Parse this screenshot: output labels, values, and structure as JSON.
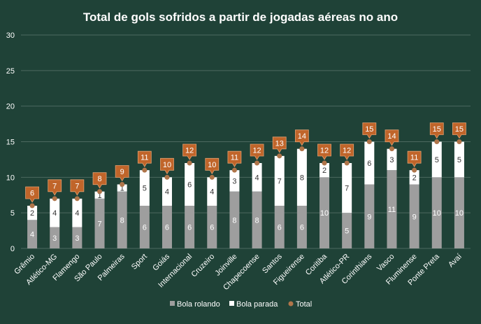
{
  "chart_data": {
    "type": "bar",
    "title": "Total de gols sofridos a partir de jogadas aéreas no ano",
    "categories": [
      "Grêmio",
      "Atlético-MG",
      "Flamengo",
      "São Paulo",
      "Palmeiras",
      "Sport",
      "Goiás",
      "Internacional",
      "Cruzeiro",
      "Joinville",
      "Chapecoense",
      "Santos",
      "Figueirense",
      "Coritiba",
      "Atlético-PR",
      "Corinthians",
      "Vasco",
      "Fluminense",
      "Ponte Preta",
      "Avaí"
    ],
    "series": [
      {
        "name": "Bola rolando",
        "values": [
          4,
          3,
          3,
          7,
          8,
          6,
          6,
          6,
          6,
          8,
          8,
          6,
          6,
          10,
          5,
          9,
          11,
          9,
          10,
          10
        ]
      },
      {
        "name": "Bola parada",
        "values": [
          2,
          4,
          4,
          1,
          1,
          5,
          4,
          6,
          4,
          3,
          4,
          7,
          8,
          2,
          7,
          6,
          3,
          2,
          5,
          5
        ]
      },
      {
        "name": "Total",
        "values": [
          6,
          7,
          7,
          8,
          9,
          11,
          10,
          12,
          10,
          11,
          12,
          13,
          14,
          12,
          12,
          15,
          14,
          11,
          15,
          15
        ]
      }
    ],
    "ylim": [
      0,
      30
    ],
    "yticks": [
      0,
      5,
      10,
      15,
      20,
      25,
      30
    ],
    "grid": true,
    "legend": "bottom",
    "colors": {
      "background": "#1f4237",
      "bola_rolando": "#9e9e9e",
      "bola_parada": "#ffffff",
      "total_marker": "#b0754a",
      "total_callout": "#c0652a",
      "gridline": "#4d6a60",
      "text": "#ffffff"
    }
  }
}
